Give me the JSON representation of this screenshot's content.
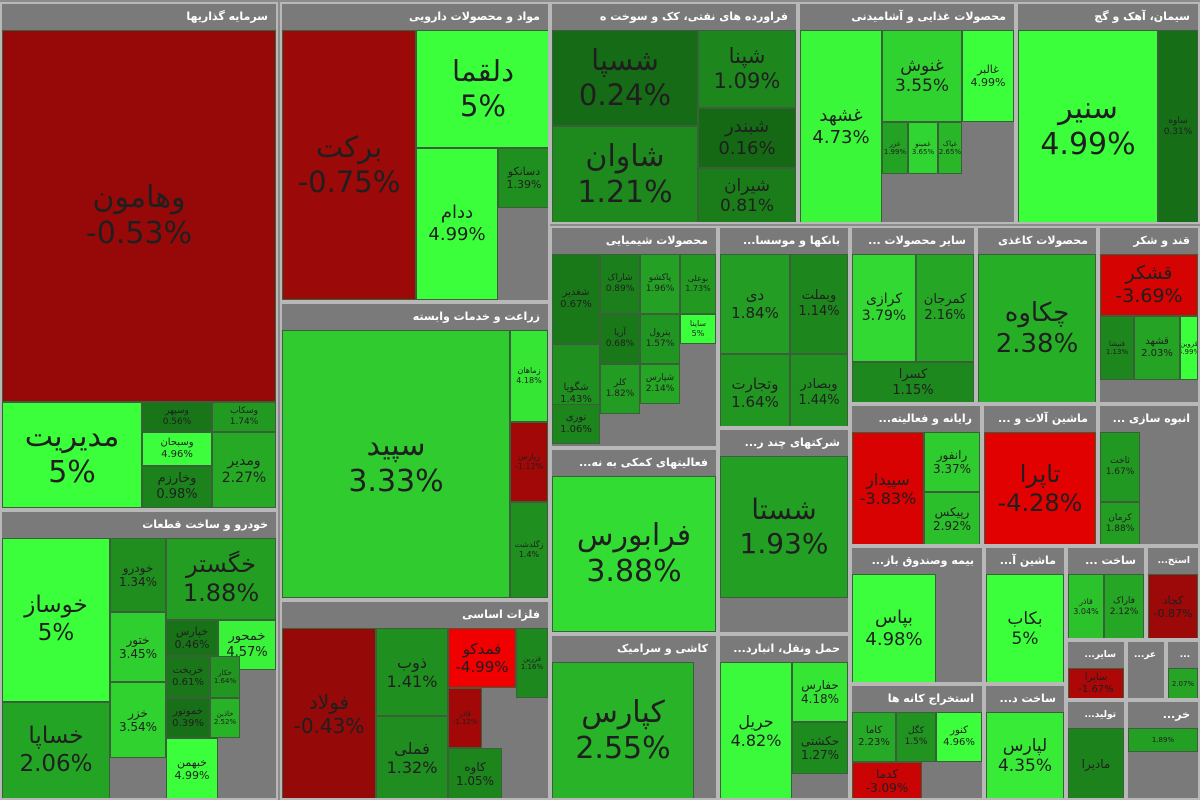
{
  "chart_data": {
    "type": "treemap",
    "sectors": [
      {
        "name": "سرمایه گذاریها",
        "tiles": [
          {
            "symbol": "وهامون",
            "change": "-0.53%",
            "value": -0.53
          },
          {
            "symbol": "مدیریت",
            "change": "5%",
            "value": 5.0
          },
          {
            "symbol": "وسپهر",
            "change": "0.56%",
            "value": 0.56
          },
          {
            "symbol": "وسکاب",
            "change": "1.74%",
            "value": 1.74
          },
          {
            "symbol": "وسبحان",
            "change": "4.96%",
            "value": 4.96
          },
          {
            "symbol": "وخارزم",
            "change": "0.98%",
            "value": 0.98
          },
          {
            "symbol": "ومدیر",
            "change": "2.27%",
            "value": 2.27
          }
        ]
      },
      {
        "name": "مواد و محصولات دارویی",
        "tiles": [
          {
            "symbol": "برکت",
            "change": "-0.75%",
            "value": -0.75
          },
          {
            "symbol": "دلقما",
            "change": "5%",
            "value": 5.0
          },
          {
            "symbol": "ددام",
            "change": "4.99%",
            "value": 4.99
          },
          {
            "symbol": "دسانکو",
            "change": "1.39%",
            "value": 1.39
          }
        ]
      },
      {
        "name": "فراورده های نفتی، کک و سوخت ه",
        "tiles": [
          {
            "symbol": "شسپا",
            "change": "0.24%",
            "value": 0.24
          },
          {
            "symbol": "شپنا",
            "change": "1.09%",
            "value": 1.09
          },
          {
            "symbol": "شبندر",
            "change": "0.16%",
            "value": 0.16
          },
          {
            "symbol": "شاوان",
            "change": "1.21%",
            "value": 1.21
          },
          {
            "symbol": "شیران",
            "change": "0.81%",
            "value": 0.81
          }
        ]
      },
      {
        "name": "محصولات غذایی و آشامیدنی",
        "tiles": [
          {
            "symbol": "غشهد",
            "change": "4.73%",
            "value": 4.73
          },
          {
            "symbol": "غنوش",
            "change": "3.55%",
            "value": 3.55
          },
          {
            "symbol": "غالبر",
            "change": "4.99%",
            "value": 4.99
          },
          {
            "symbol": "غزر",
            "change": "1.99%",
            "value": 1.99
          },
          {
            "symbol": "غمینو",
            "change": "3.65%",
            "value": 3.65
          },
          {
            "symbol": "غپاک",
            "change": "2.65%",
            "value": 2.65
          }
        ]
      },
      {
        "name": "سیمان، آهک و گچ",
        "tiles": [
          {
            "symbol": "سنیر",
            "change": "4.99%",
            "value": 4.99
          },
          {
            "symbol": "ساوه",
            "change": "0.31%",
            "value": 0.31
          }
        ]
      },
      {
        "name": "محصولات شیمیایی",
        "tiles": [
          {
            "symbol": "شغدیر",
            "change": "0.67%",
            "value": 0.67
          },
          {
            "symbol": "شاراک",
            "change": "0.89%",
            "value": 0.89
          },
          {
            "symbol": "پاکشو",
            "change": "1.96%",
            "value": 1.96
          },
          {
            "symbol": "بوعلی",
            "change": "1.73%",
            "value": 1.73
          },
          {
            "symbol": "آریا",
            "change": "0.68%",
            "value": 0.68
          },
          {
            "symbol": "پترول",
            "change": "1.57%",
            "value": 1.57
          },
          {
            "symbol": "ساینا",
            "change": "5%",
            "value": 5.0
          },
          {
            "symbol": "شگویا",
            "change": "1.43%",
            "value": 1.43
          },
          {
            "symbol": "کلر",
            "change": "1.82%",
            "value": 1.82
          },
          {
            "symbol": "شپارس",
            "change": "2.14%",
            "value": 2.14
          },
          {
            "symbol": "نوری",
            "change": "1.06%",
            "value": 1.06
          }
        ]
      },
      {
        "name": "بانکها و موسسا...",
        "tiles": [
          {
            "symbol": "دی",
            "change": "1.84%",
            "value": 1.84
          },
          {
            "symbol": "وبملت",
            "change": "1.14%",
            "value": 1.14
          },
          {
            "symbol": "وتجارت",
            "change": "1.64%",
            "value": 1.64
          },
          {
            "symbol": "وبصادر",
            "change": "1.44%",
            "value": 1.44
          }
        ]
      },
      {
        "name": "سایر محصولات ...",
        "tiles": [
          {
            "symbol": "کرازی",
            "change": "3.79%",
            "value": 3.79
          },
          {
            "symbol": "کمرجان",
            "change": "2.16%",
            "value": 2.16
          },
          {
            "symbol": "کسرا",
            "change": "1.15%",
            "value": 1.15
          }
        ]
      },
      {
        "name": "محصولات کاغذی",
        "tiles": [
          {
            "symbol": "چکاوه",
            "change": "2.38%",
            "value": 2.38
          }
        ]
      },
      {
        "name": "قند و شکر",
        "tiles": [
          {
            "symbol": "قشکر",
            "change": "-3.69%",
            "value": -3.69
          },
          {
            "symbol": "قشهد",
            "change": "2.03%",
            "value": 2.03
          },
          {
            "symbol": "قنیشا",
            "change": "1.13%",
            "value": 1.13
          },
          {
            "symbol": "قزوین",
            "change": "4.99%",
            "value": 4.99
          }
        ]
      },
      {
        "name": "زراعت و خدمات وابسته",
        "tiles": [
          {
            "symbol": "سپید",
            "change": "3.33%",
            "value": 3.33
          },
          {
            "symbol": "زماهان",
            "change": "4.18%",
            "value": 4.18
          },
          {
            "symbol": "زپارس",
            "change": "-1.12%",
            "value": -1.12
          },
          {
            "symbol": "زگلدشت",
            "change": "1.4%",
            "value": 1.4
          },
          {
            "symbol": "زکوثر",
            "change": "1.16%",
            "value": 1.16
          }
        ]
      },
      {
        "name": "فعالیتهای کمکی به نه...",
        "tiles": [
          {
            "symbol": "فرابورس",
            "change": "3.88%",
            "value": 3.88
          }
        ]
      },
      {
        "name": "شرکتهای چند ر...",
        "tiles": [
          {
            "symbol": "شستا",
            "change": "1.93%",
            "value": 1.93
          }
        ]
      },
      {
        "name": "رایانه و فعالیته...",
        "tiles": [
          {
            "symbol": "سپیدار",
            "change": "-3.83%",
            "value": -3.83
          },
          {
            "symbol": "رانفور",
            "change": "3.37%",
            "value": 3.37
          },
          {
            "symbol": "رپیکس",
            "change": "2.92%",
            "value": 2.92
          }
        ]
      },
      {
        "name": "ماشین آلات و ...",
        "tiles": [
          {
            "symbol": "تاپرا",
            "change": "-4.28%",
            "value": -4.28
          }
        ]
      },
      {
        "name": "انبوه سازی ...",
        "tiles": [
          {
            "symbol": "ثاخت",
            "change": "1.67%",
            "value": 1.67
          },
          {
            "symbol": "کرمان",
            "change": "1.88%",
            "value": 1.88
          }
        ]
      },
      {
        "name": "خودرو و ساخت قطعات",
        "tiles": [
          {
            "symbol": "خوساز",
            "change": "5%",
            "value": 5.0
          },
          {
            "symbol": "خودرو",
            "change": "1.34%",
            "value": 1.34
          },
          {
            "symbol": "خگستر",
            "change": "1.88%",
            "value": 1.88
          },
          {
            "symbol": "خساپا",
            "change": "2.06%",
            "value": 2.06
          },
          {
            "symbol": "ختور",
            "change": "3.45%",
            "value": 3.45
          },
          {
            "symbol": "خزر",
            "change": "3.54%",
            "value": 3.54
          },
          {
            "symbol": "خمحور",
            "change": "4.57%",
            "value": 4.57
          },
          {
            "symbol": "خپارس",
            "change": "0.46%",
            "value": 0.46
          },
          {
            "symbol": "خریخت",
            "change": "0.61%",
            "value": 0.61
          },
          {
            "symbol": "خکار",
            "change": "1.64%",
            "value": 1.64
          },
          {
            "symbol": "خموتور",
            "change": "0.39%",
            "value": 0.39
          },
          {
            "symbol": "خاذین",
            "change": "2.52%",
            "value": 2.52
          },
          {
            "symbol": "خبهمن",
            "change": "4.99%",
            "value": 4.99
          }
        ]
      },
      {
        "name": "فلزات اساسی",
        "tiles": [
          {
            "symbol": "فولاد",
            "change": "-0.43%",
            "value": -0.43
          },
          {
            "symbol": "ذوب",
            "change": "1.41%",
            "value": 1.41
          },
          {
            "symbol": "فملی",
            "change": "1.32%",
            "value": 1.32
          },
          {
            "symbol": "فمدکو",
            "change": "-4.99%",
            "value": -4.99
          },
          {
            "symbol": "فزرین",
            "change": "1.16%",
            "value": 1.16
          },
          {
            "symbol": "فاذر",
            "change": "-1.12%",
            "value": -1.12
          },
          {
            "symbol": "کاوه",
            "change": "1.05%",
            "value": 1.05
          }
        ]
      },
      {
        "name": "کاشی و سرامیک",
        "tiles": [
          {
            "symbol": "کپارس",
            "change": "2.55%",
            "value": 2.55
          }
        ]
      },
      {
        "name": "حمل ونقل، انبارد...",
        "tiles": [
          {
            "symbol": "حریل",
            "change": "4.82%",
            "value": 4.82
          },
          {
            "symbol": "حفارس",
            "change": "4.18%",
            "value": 4.18
          },
          {
            "symbol": "حکشتی",
            "change": "1.27%",
            "value": 1.27
          }
        ]
      },
      {
        "name": "بیمه وصندوق باز...",
        "tiles": [
          {
            "symbol": "بپاس",
            "change": "4.98%",
            "value": 4.98
          }
        ]
      },
      {
        "name": "ماشین آ...",
        "tiles": [
          {
            "symbol": "بکاب",
            "change": "5%",
            "value": 5.0
          }
        ]
      },
      {
        "name": "ساخت ...",
        "tiles": [
          {
            "symbol": "قاذر",
            "change": "3.04%",
            "value": 3.04
          },
          {
            "symbol": "فاراک",
            "change": "2.12%",
            "value": 2.12
          }
        ]
      },
      {
        "name": "استخ...",
        "tiles": [
          {
            "symbol": "کچاد",
            "change": "-0.87%",
            "value": -0.87
          }
        ]
      },
      {
        "name": "استخراج کانه ها",
        "tiles": [
          {
            "symbol": "کاما",
            "change": "2.23%",
            "value": 2.23
          },
          {
            "symbol": "کگل",
            "change": "1.5%",
            "value": 1.5
          },
          {
            "symbol": "کنور",
            "change": "4.96%",
            "value": 4.96
          },
          {
            "symbol": "کدما",
            "change": "-3.09%",
            "value": -3.09
          }
        ]
      },
      {
        "name": "ساخت د...",
        "tiles": [
          {
            "symbol": "لپارس",
            "change": "4.35%",
            "value": 4.35
          }
        ]
      },
      {
        "name": "سایر...",
        "tiles": [
          {
            "symbol": "سایرا",
            "change": "-1.67%",
            "value": -1.67
          }
        ]
      },
      {
        "name": "عر...",
        "tiles": []
      },
      {
        "name": "...",
        "tiles": [
          {
            "symbol": "",
            "change": "2.07%",
            "value": 2.07
          }
        ]
      },
      {
        "name": "تولید...",
        "tiles": [
          {
            "symbol": "مادیرا",
            "change": "",
            "value": 1.0
          }
        ]
      },
      {
        "name": "خر...",
        "tiles": [
          {
            "symbol": "",
            "change": "1.89%",
            "value": 1.89
          }
        ]
      }
    ]
  }
}
